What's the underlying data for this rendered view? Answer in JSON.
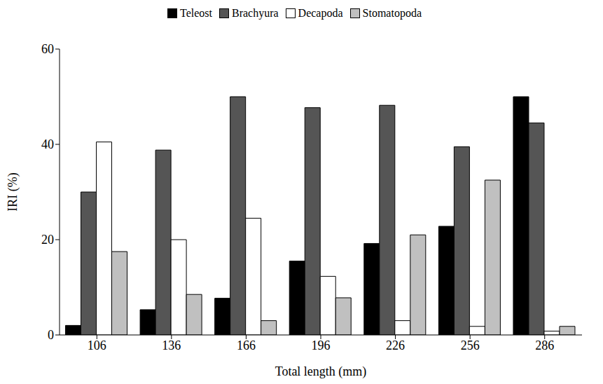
{
  "chart_data": {
    "type": "bar",
    "x_label": "Total length (mm)",
    "y_label": "IRI (%)",
    "categories": [
      "106",
      "136",
      "166",
      "196",
      "226",
      "256",
      "286"
    ],
    "series": [
      {
        "name": "Teleost",
        "color": "#000000",
        "values": [
          2,
          5.3,
          7.7,
          15.5,
          19.2,
          22.8,
          50
        ]
      },
      {
        "name": "Brachyura",
        "color": "#555555",
        "values": [
          30,
          38.8,
          50,
          47.7,
          48.2,
          39.5,
          44.5
        ]
      },
      {
        "name": "Decapoda",
        "color": "#ffffff",
        "values": [
          40.5,
          20,
          24.5,
          12.3,
          3,
          1.8,
          0.8
        ]
      },
      {
        "name": "Stomatopoda",
        "color": "#c0c0c0",
        "values": [
          17.5,
          8.5,
          3,
          7.8,
          21,
          32.5,
          1.8
        ]
      }
    ],
    "ylim": [
      0,
      60
    ],
    "yticks": [
      0,
      20,
      40,
      60
    ],
    "grid": false,
    "legend": "top"
  }
}
